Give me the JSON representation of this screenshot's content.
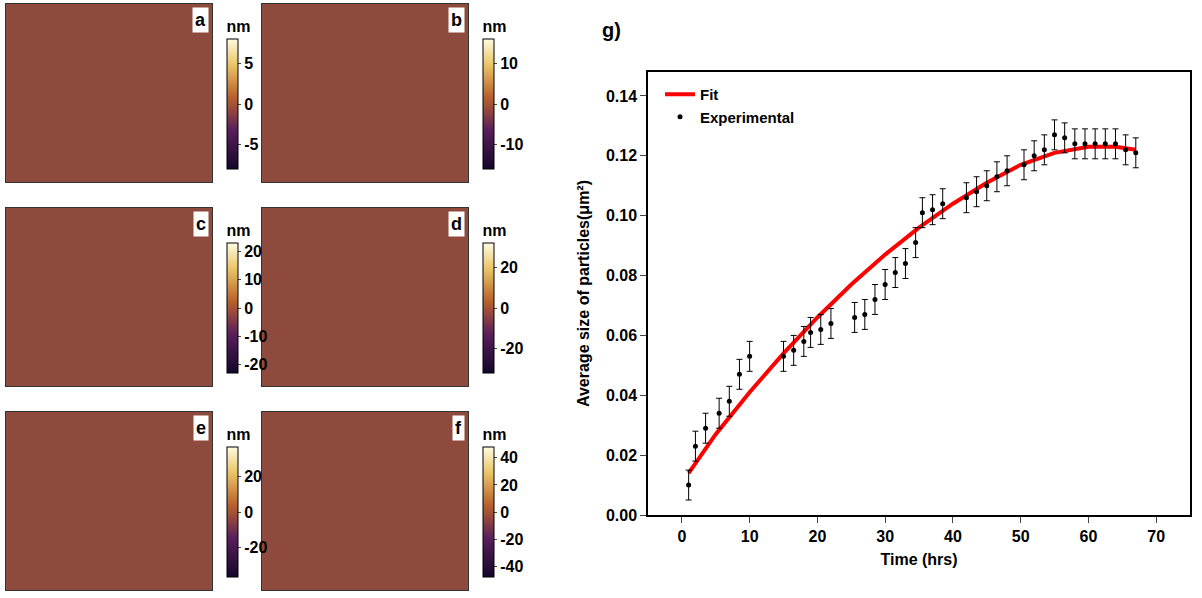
{
  "chart_data": [
    {
      "type": "image",
      "label": "a",
      "colorbar": {
        "title": "nm",
        "range": [
          -8,
          8
        ],
        "ticks": [
          -5,
          0,
          5
        ]
      }
    },
    {
      "type": "image",
      "label": "b",
      "colorbar": {
        "title": "nm",
        "range": [
          -16,
          16
        ],
        "ticks": [
          -10,
          0,
          10
        ]
      }
    },
    {
      "type": "image",
      "label": "c",
      "colorbar": {
        "title": "nm",
        "range": [
          -23,
          23
        ],
        "ticks": [
          -20,
          -10,
          0,
          10,
          20
        ]
      }
    },
    {
      "type": "image",
      "label": "d",
      "colorbar": {
        "title": "nm",
        "range": [
          -32,
          32
        ],
        "ticks": [
          -20,
          0,
          20
        ]
      }
    },
    {
      "type": "image",
      "label": "e",
      "colorbar": {
        "title": "nm",
        "range": [
          -37,
          37
        ],
        "ticks": [
          -20,
          0,
          20
        ]
      }
    },
    {
      "type": "image",
      "label": "f",
      "colorbar": {
        "title": "nm",
        "range": [
          -48,
          48
        ],
        "ticks": [
          -40,
          -20,
          0,
          20,
          40
        ]
      }
    },
    {
      "type": "scatter",
      "label": "g)",
      "xlabel": "Time (hrs)",
      "ylabel": "Average size of particles(μm²)",
      "xlim": [
        -5,
        75
      ],
      "xticks": [
        0,
        10,
        20,
        30,
        40,
        50,
        60,
        70
      ],
      "ylim": [
        0,
        0.148
      ],
      "yticks": [
        {
          "value": 0,
          "label": "0.00"
        },
        {
          "value": 0.02,
          "label": "0.02"
        },
        {
          "value": 0.04,
          "label": "0.04"
        },
        {
          "value": 0.06,
          "label": "0.06"
        },
        {
          "value": 0.08,
          "label": "0.08"
        },
        {
          "value": 0.1,
          "label": "0.10"
        },
        {
          "value": 0.12,
          "label": "0.12"
        },
        {
          "value": 0.14,
          "label": "0.14"
        }
      ],
      "grid": false,
      "legend": "top-left",
      "series": [
        {
          "name": "Fit",
          "type": "line",
          "color": "#ff0000",
          "line_style": "solid",
          "x": [
            1,
            5,
            10,
            15,
            20,
            25,
            30,
            35,
            40,
            45,
            50,
            55,
            60,
            64,
            67
          ],
          "values": [
            0.014,
            0.027,
            0.041,
            0.054,
            0.066,
            0.077,
            0.087,
            0.096,
            0.104,
            0.111,
            0.117,
            0.121,
            0.123,
            0.123,
            0.122
          ]
        },
        {
          "name": "Experimental",
          "type": "scatter",
          "marker": "circle",
          "color": "#000000",
          "x": [
            1,
            2,
            3.5,
            5.5,
            7,
            8.5,
            10,
            15,
            16.5,
            18,
            19,
            20.5,
            22,
            25.5,
            27,
            28.5,
            30,
            31.5,
            33,
            34.5,
            35.5,
            37,
            38.5,
            42,
            43.5,
            45,
            46.5,
            48,
            50.5,
            52,
            53.5,
            55,
            56.5,
            58,
            59.5,
            61,
            62.5,
            64,
            65.5,
            67
          ],
          "values": [
            0.01,
            0.023,
            0.029,
            0.034,
            0.038,
            0.047,
            0.053,
            0.053,
            0.055,
            0.058,
            0.061,
            0.062,
            0.064,
            0.066,
            0.067,
            0.072,
            0.077,
            0.081,
            0.084,
            0.091,
            0.101,
            0.102,
            0.104,
            0.106,
            0.108,
            0.11,
            0.113,
            0.115,
            0.117,
            0.12,
            0.122,
            0.127,
            0.126,
            0.124,
            0.124,
            0.124,
            0.124,
            0.124,
            0.122,
            0.121
          ],
          "error": [
            0.005,
            0.005,
            0.005,
            0.005,
            0.005,
            0.005,
            0.005,
            0.005,
            0.005,
            0.005,
            0.005,
            0.005,
            0.005,
            0.005,
            0.005,
            0.005,
            0.005,
            0.005,
            0.005,
            0.005,
            0.005,
            0.005,
            0.005,
            0.005,
            0.005,
            0.005,
            0.005,
            0.005,
            0.005,
            0.005,
            0.005,
            0.005,
            0.005,
            0.005,
            0.005,
            0.005,
            0.005,
            0.005,
            0.005,
            0.005
          ]
        }
      ]
    }
  ]
}
